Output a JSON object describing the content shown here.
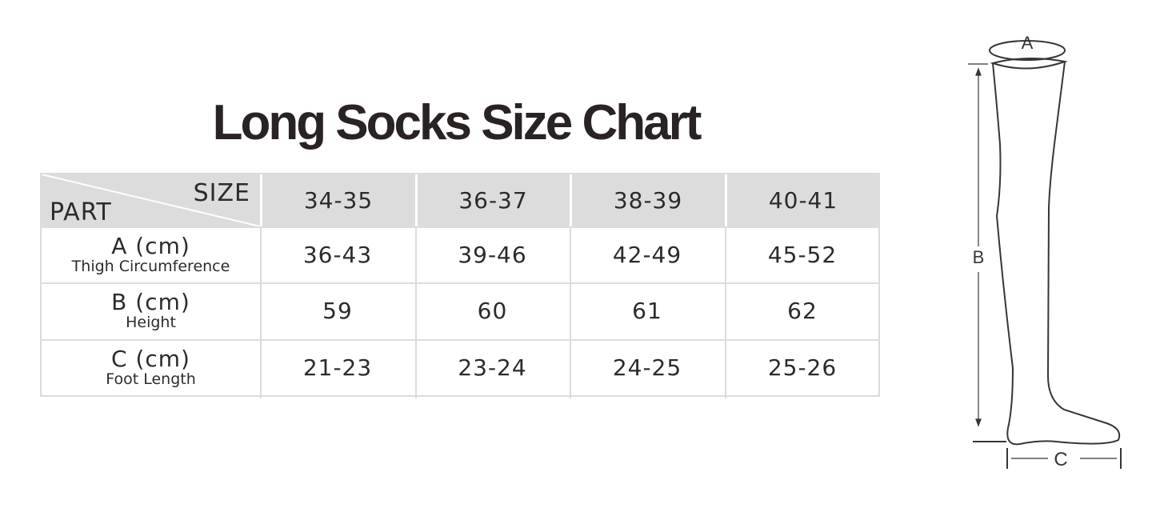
{
  "title": "Long Socks Size Chart",
  "table": {
    "corner_top": "SIZE",
    "corner_bottom": "PART",
    "sizes": [
      "34-35",
      "36-37",
      "38-39",
      "40-41"
    ],
    "rows": [
      {
        "label": "A (cm)",
        "sublabel": "Thigh Circumference",
        "values": [
          "36-43",
          "39-46",
          "42-49",
          "45-52"
        ]
      },
      {
        "label": "B (cm)",
        "sublabel": "Height",
        "values": [
          "59",
          "60",
          "61",
          "62"
        ]
      },
      {
        "label": "C (cm)",
        "sublabel": "Foot Length",
        "values": [
          "21-23",
          "23-24",
          "24-25",
          "25-26"
        ]
      }
    ]
  },
  "diagram": {
    "label_a": "A",
    "label_b": "B",
    "label_c": "C"
  },
  "colors": {
    "header_bg": "#dcdcdc",
    "text": "#2e2a2a"
  }
}
